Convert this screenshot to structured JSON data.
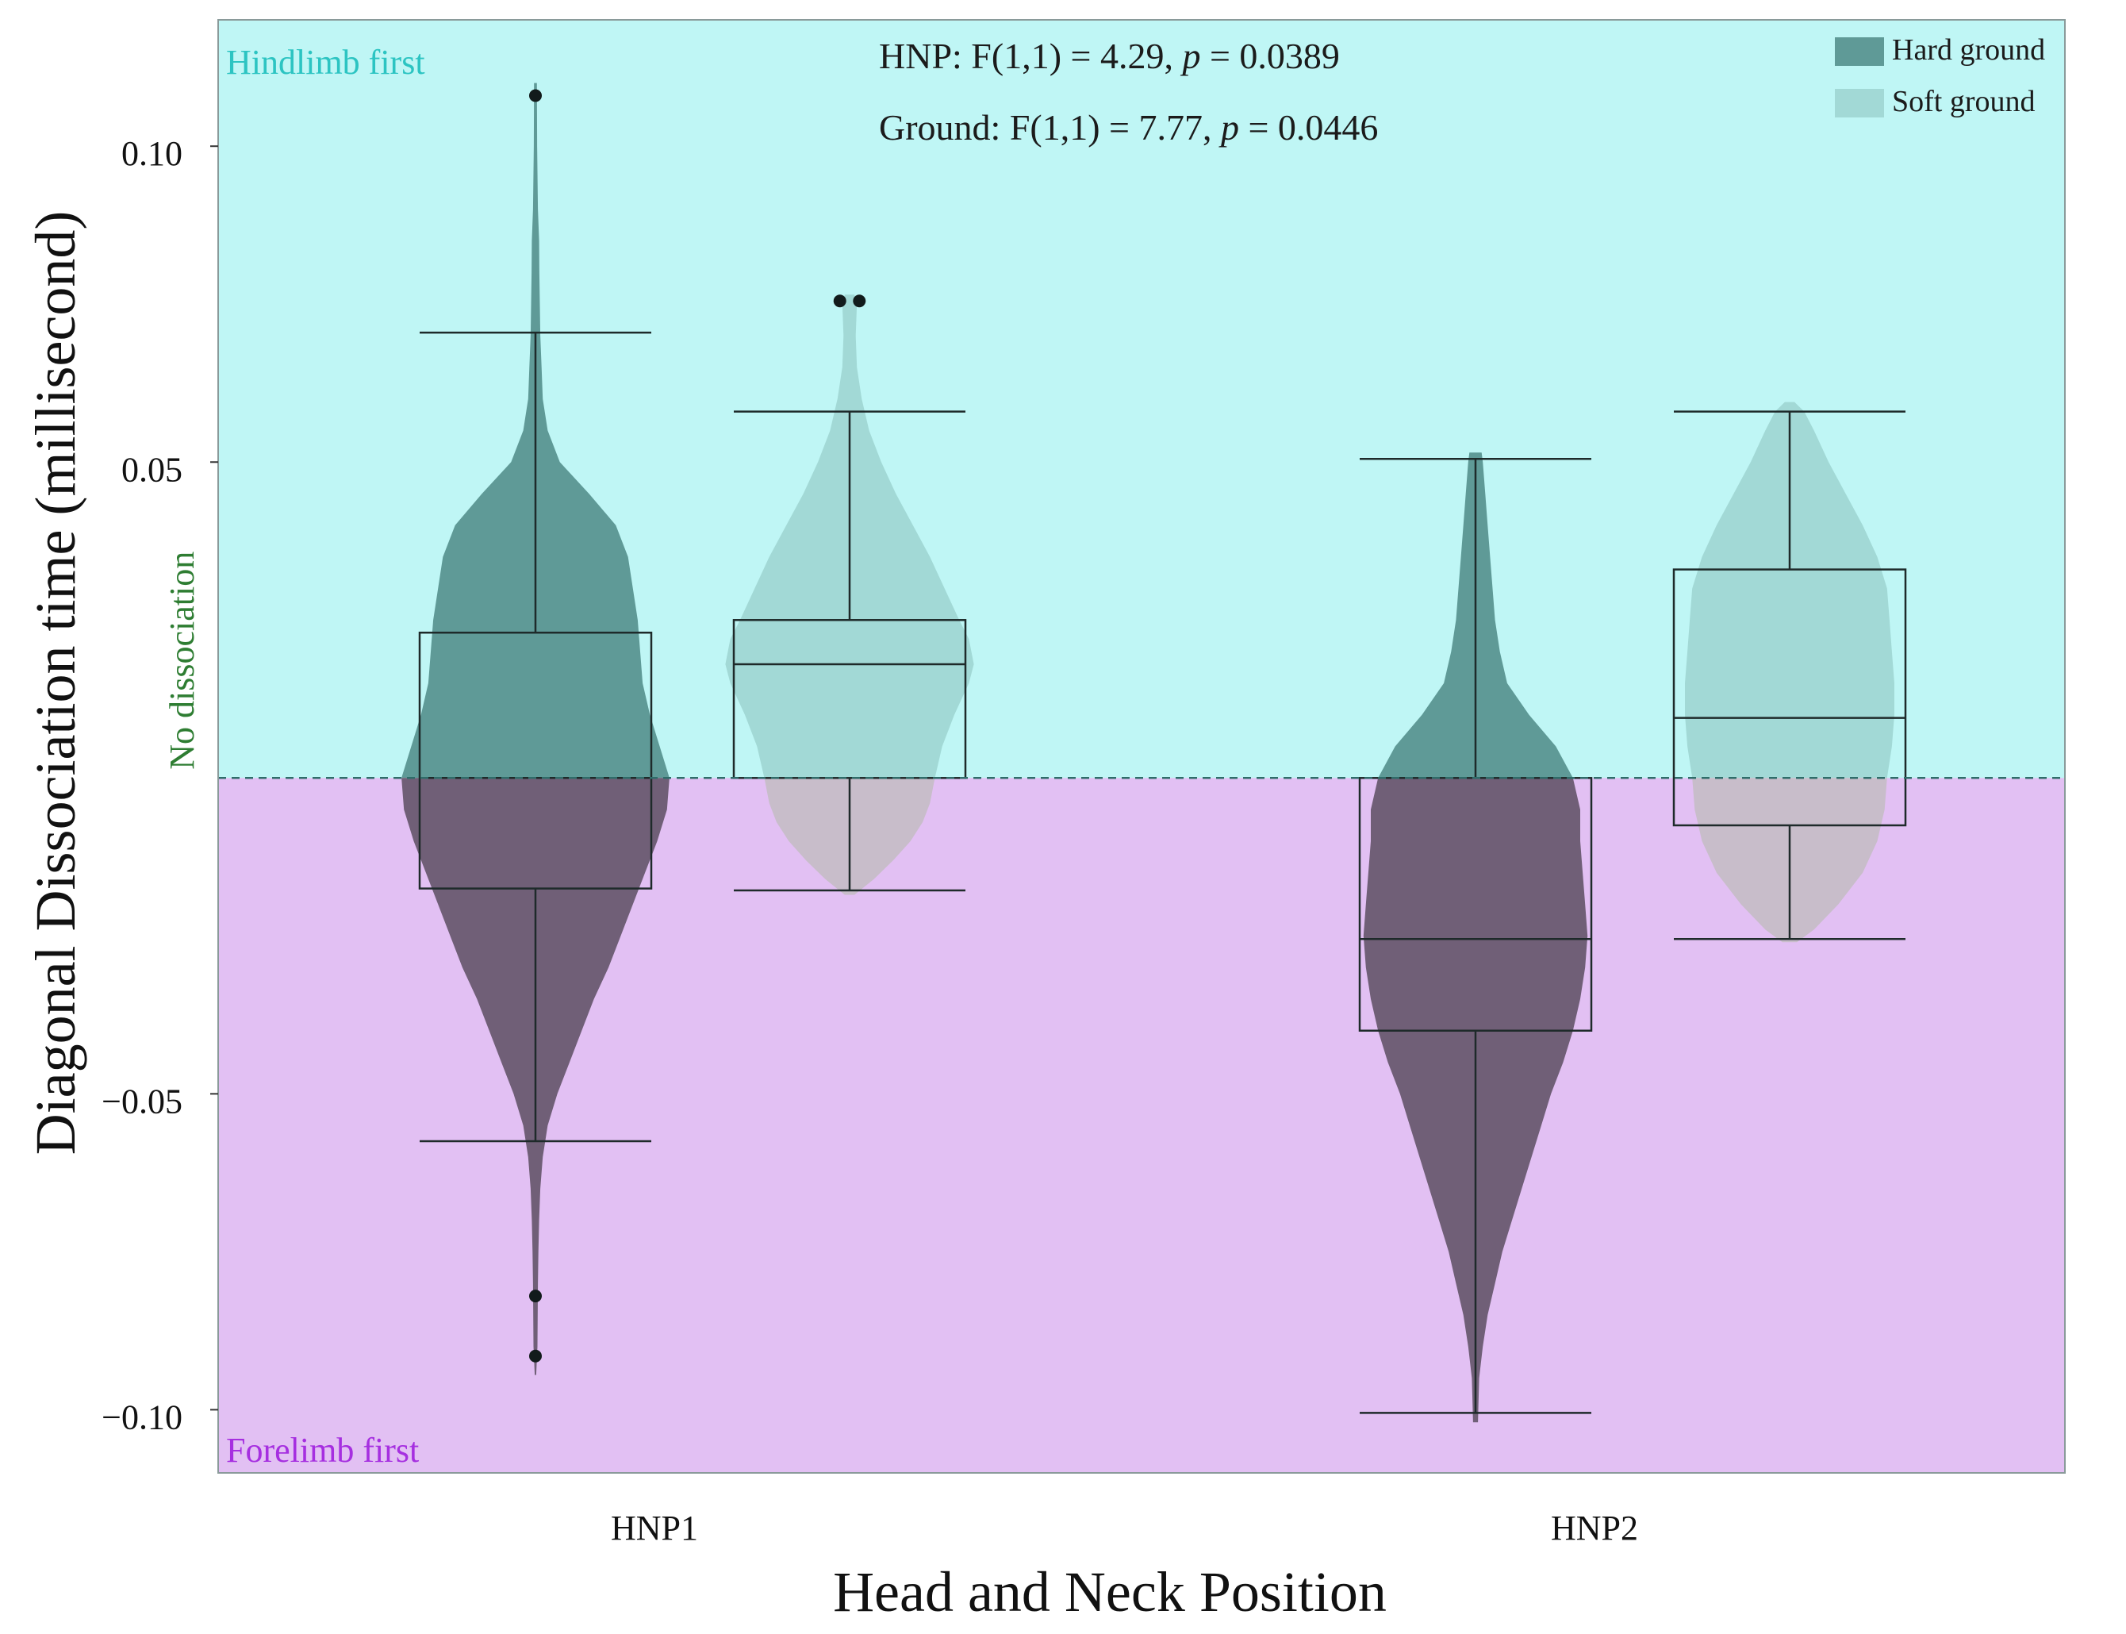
{
  "chart_data": {
    "type": "violin",
    "ylabel": "Diagonal Dissociation time (millisecond)",
    "xlabel": "Head and Neck Position",
    "categories": [
      "HNP1",
      "HNP2"
    ],
    "ylim": [
      -0.11,
      0.12
    ],
    "yticks": [
      -0.1,
      -0.05,
      0.05,
      0.1
    ],
    "ytick_labels": [
      "−0.10",
      "−0.05",
      "0.05",
      "0.10"
    ],
    "grid": false,
    "legend_position": "top-right",
    "reference_line": {
      "y": 0,
      "label": "No dissociation"
    },
    "regions": {
      "upper": {
        "label": "Hindlimb first",
        "color": "#bff6f5",
        "label_color": "#2cc4c2"
      },
      "lower": {
        "label": "Forelimb first",
        "color": "#e2c0f3",
        "label_color": "#a62fe0"
      }
    },
    "annotations": [
      {
        "prefix": "HNP: F(1,1) = 4.29, ",
        "p_symbol": "p",
        "suffix": " = 0.0389"
      },
      {
        "prefix": "Ground: F(1,1) = 7.77, ",
        "p_symbol": "p",
        "suffix": " = 0.0446"
      }
    ],
    "series": [
      {
        "name": "Hard ground",
        "color": "#5f9a97",
        "color_below": "#705f77"
      },
      {
        "name": "Soft ground",
        "color": "#a2d9d6",
        "color_below": "#c8bdca"
      }
    ],
    "groups": [
      {
        "category": "HNP1",
        "series": "Hard ground",
        "box": {
          "whisker_low": -0.0575,
          "q1": -0.0175,
          "median": 0.0,
          "q3": 0.023,
          "whisker_high": 0.0705
        },
        "outliers": [
          0.108,
          -0.082,
          -0.0915
        ],
        "violin": [
          [
            -0.0945,
            0.0003
          ],
          [
            -0.09,
            0.0008
          ],
          [
            -0.085,
            0.0009
          ],
          [
            -0.08,
            0.001
          ],
          [
            -0.075,
            0.0012
          ],
          [
            -0.07,
            0.0015
          ],
          [
            -0.065,
            0.002
          ],
          [
            -0.06,
            0.003
          ],
          [
            -0.055,
            0.005
          ],
          [
            -0.05,
            0.009
          ],
          [
            -0.045,
            0.014
          ],
          [
            -0.04,
            0.019
          ],
          [
            -0.035,
            0.024
          ],
          [
            -0.03,
            0.03
          ],
          [
            -0.025,
            0.035
          ],
          [
            -0.02,
            0.04
          ],
          [
            -0.015,
            0.045
          ],
          [
            -0.01,
            0.05
          ],
          [
            -0.005,
            0.054
          ],
          [
            0.0,
            0.055
          ],
          [
            0.005,
            0.051
          ],
          [
            0.01,
            0.047
          ],
          [
            0.015,
            0.044
          ],
          [
            0.02,
            0.043
          ],
          [
            0.025,
            0.042
          ],
          [
            0.03,
            0.04
          ],
          [
            0.035,
            0.038
          ],
          [
            0.04,
            0.033
          ],
          [
            0.045,
            0.022
          ],
          [
            0.05,
            0.01
          ],
          [
            0.055,
            0.005
          ],
          [
            0.06,
            0.003
          ],
          [
            0.065,
            0.0025
          ],
          [
            0.07,
            0.002
          ],
          [
            0.075,
            0.0018
          ],
          [
            0.08,
            0.0016
          ],
          [
            0.085,
            0.0015
          ],
          [
            0.09,
            0.001
          ],
          [
            0.1,
            0.0007
          ],
          [
            0.11,
            0.0006
          ]
        ]
      },
      {
        "category": "HNP1",
        "series": "Soft ground",
        "box": {
          "whisker_low": -0.0178,
          "q1": 0.0,
          "median": 0.018,
          "q3": 0.025,
          "whisker_high": 0.058
        },
        "outliers": [
          0.0755,
          0.0755
        ],
        "outlier_offsets": [
          -0.004,
          0.004
        ],
        "violin": [
          [
            -0.0185,
            0.002
          ],
          [
            -0.016,
            0.01
          ],
          [
            -0.013,
            0.018
          ],
          [
            -0.01,
            0.025
          ],
          [
            -0.007,
            0.03
          ],
          [
            -0.004,
            0.033
          ],
          [
            0.0,
            0.035
          ],
          [
            0.005,
            0.038
          ],
          [
            0.01,
            0.043
          ],
          [
            0.015,
            0.049
          ],
          [
            0.018,
            0.051
          ],
          [
            0.022,
            0.049
          ],
          [
            0.025,
            0.045
          ],
          [
            0.03,
            0.039
          ],
          [
            0.035,
            0.033
          ],
          [
            0.04,
            0.026
          ],
          [
            0.045,
            0.019
          ],
          [
            0.05,
            0.013
          ],
          [
            0.055,
            0.008
          ],
          [
            0.06,
            0.005
          ],
          [
            0.065,
            0.003
          ],
          [
            0.07,
            0.0025
          ],
          [
            0.075,
            0.003
          ],
          [
            0.0765,
            0.002
          ]
        ]
      },
      {
        "category": "HNP2",
        "series": "Hard ground",
        "box": {
          "whisker_low": -0.1005,
          "q1": -0.04,
          "median": -0.0255,
          "q3": 0.0,
          "whisker_high": 0.0505
        },
        "outliers": [],
        "violin": [
          [
            -0.102,
            0.001
          ],
          [
            -0.095,
            0.0015
          ],
          [
            -0.09,
            0.003
          ],
          [
            -0.085,
            0.005
          ],
          [
            -0.08,
            0.008
          ],
          [
            -0.075,
            0.011
          ],
          [
            -0.07,
            0.015
          ],
          [
            -0.065,
            0.019
          ],
          [
            -0.06,
            0.023
          ],
          [
            -0.055,
            0.027
          ],
          [
            -0.05,
            0.031
          ],
          [
            -0.045,
            0.036
          ],
          [
            -0.04,
            0.04
          ],
          [
            -0.035,
            0.043
          ],
          [
            -0.03,
            0.045
          ],
          [
            -0.025,
            0.046
          ],
          [
            -0.02,
            0.045
          ],
          [
            -0.015,
            0.044
          ],
          [
            -0.01,
            0.043
          ],
          [
            -0.005,
            0.043
          ],
          [
            0.0,
            0.04
          ],
          [
            0.005,
            0.033
          ],
          [
            0.01,
            0.022
          ],
          [
            0.015,
            0.013
          ],
          [
            0.02,
            0.01
          ],
          [
            0.025,
            0.008
          ],
          [
            0.03,
            0.007
          ],
          [
            0.035,
            0.006
          ],
          [
            0.04,
            0.005
          ],
          [
            0.045,
            0.004
          ],
          [
            0.05,
            0.003
          ],
          [
            0.0515,
            0.0025
          ]
        ]
      },
      {
        "category": "HNP2",
        "series": "Soft ground",
        "box": {
          "whisker_low": -0.0255,
          "q1": -0.0075,
          "median": 0.0095,
          "q3": 0.033,
          "whisker_high": 0.058
        },
        "outliers": [],
        "violin": [
          [
            -0.026,
            0.003
          ],
          [
            -0.024,
            0.01
          ],
          [
            -0.02,
            0.02
          ],
          [
            -0.015,
            0.03
          ],
          [
            -0.01,
            0.036
          ],
          [
            -0.005,
            0.039
          ],
          [
            0.0,
            0.04
          ],
          [
            0.005,
            0.042
          ],
          [
            0.01,
            0.043
          ],
          [
            0.015,
            0.043
          ],
          [
            0.02,
            0.042
          ],
          [
            0.025,
            0.041
          ],
          [
            0.03,
            0.04
          ],
          [
            0.035,
            0.036
          ],
          [
            0.04,
            0.03
          ],
          [
            0.045,
            0.023
          ],
          [
            0.05,
            0.016
          ],
          [
            0.055,
            0.01
          ],
          [
            0.058,
            0.006
          ],
          [
            0.0595,
            0.002
          ]
        ]
      }
    ]
  }
}
